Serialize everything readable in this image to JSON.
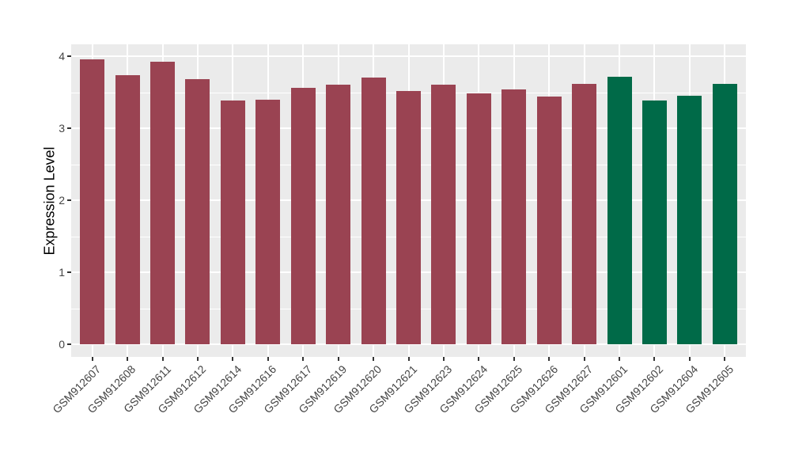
{
  "chart_data": {
    "type": "bar",
    "title": "",
    "xlabel": "",
    "ylabel": "Expression Level",
    "ylim": [
      0,
      4
    ],
    "yticks": [
      0,
      1,
      2,
      3,
      4
    ],
    "grid": true,
    "legend_position": "none",
    "categories": [
      "GSM912607",
      "GSM912608",
      "GSM912611",
      "GSM912612",
      "GSM912614",
      "GSM912616",
      "GSM912617",
      "GSM912619",
      "GSM912620",
      "GSM912621",
      "GSM912623",
      "GSM912624",
      "GSM912625",
      "GSM912626",
      "GSM912627",
      "GSM912601",
      "GSM912602",
      "GSM912604",
      "GSM912605"
    ],
    "values": [
      3.96,
      3.74,
      3.92,
      3.68,
      3.39,
      3.4,
      3.56,
      3.6,
      3.7,
      3.52,
      3.6,
      3.48,
      3.54,
      3.44,
      3.62,
      3.71,
      3.38,
      3.45,
      3.61
    ],
    "bar_colors": [
      "#9A4352",
      "#9A4352",
      "#9A4352",
      "#9A4352",
      "#9A4352",
      "#9A4352",
      "#9A4352",
      "#9A4352",
      "#9A4352",
      "#9A4352",
      "#9A4352",
      "#9A4352",
      "#9A4352",
      "#9A4352",
      "#9A4352",
      "#006A48",
      "#006A48",
      "#006A48",
      "#006A48"
    ],
    "style": {
      "background": "#FFFFFF",
      "panel_background": "#EBEBEB",
      "gridline_color": "#FFFFFF",
      "axis_text_color": "#444444",
      "axis_title_color": "#000000",
      "tick_mark_color": "#333333"
    }
  }
}
